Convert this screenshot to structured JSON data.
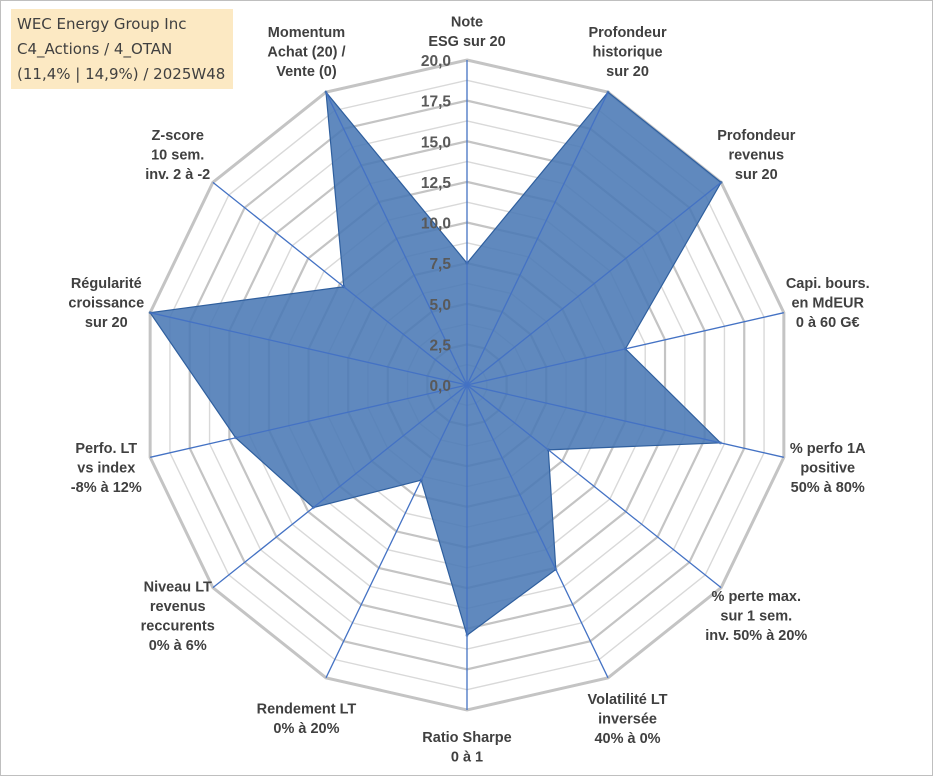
{
  "title_box": {
    "line1": "WEC Energy Group Inc",
    "line2": "C4_Actions / 4_OTAN",
    "line3": "(11,4% | 14,9%) / 2025W48"
  },
  "colors": {
    "fill": "#4a79b5",
    "stroke": "#2f5f9e",
    "axis": "#4472c4",
    "grid": "#c8c8c8"
  },
  "chart_data": {
    "type": "radar",
    "r_min": 0,
    "r_max": 20,
    "ticks": [
      "0,0",
      "2,5",
      "5,0",
      "7,5",
      "10,0",
      "12,5",
      "15,0",
      "17,5",
      "20,0"
    ],
    "axes": [
      {
        "label": [
          "Note",
          "ESG sur 20"
        ],
        "value": 7.5
      },
      {
        "label": [
          "Profondeur",
          "historique",
          "sur 20"
        ],
        "value": 20
      },
      {
        "label": [
          "Profondeur",
          "revenus",
          "sur 20"
        ],
        "value": 20
      },
      {
        "label": [
          "Capi. bours.",
          "en MdEUR",
          "0 à 60 G€"
        ],
        "value": 10
      },
      {
        "label": [
          "% perfo 1A",
          "positive",
          "50% à 80%"
        ],
        "value": 16
      },
      {
        "label": [
          "% perte max.",
          "sur 1 sem.",
          "inv. 50% à 20%"
        ],
        "value": 6.4
      },
      {
        "label": [
          "Volatilité LT",
          "inversée",
          "40% à 0%"
        ],
        "value": 12.6
      },
      {
        "label": [
          "Ratio Sharpe",
          "0 à 1"
        ],
        "value": 15.4
      },
      {
        "label": [
          "Rendement LT",
          "0% à 20%"
        ],
        "value": 6.5
      },
      {
        "label": [
          "Niveau LT",
          "revenus",
          "reccurents",
          "0% à 6%"
        ],
        "value": 12.1
      },
      {
        "label": [
          "Perfo. LT",
          "vs index",
          "-8% à 12%"
        ],
        "value": 14.6
      },
      {
        "label": [
          "Régularité",
          "croissance",
          "sur 20"
        ],
        "value": 20
      },
      {
        "label": [
          "Z-score",
          "10 sem.",
          "inv. 2 à -2"
        ],
        "value": 9.7
      },
      {
        "label": [
          "Momentum",
          "Achat (20) /",
          "Vente (0)"
        ],
        "value": 20
      }
    ]
  }
}
